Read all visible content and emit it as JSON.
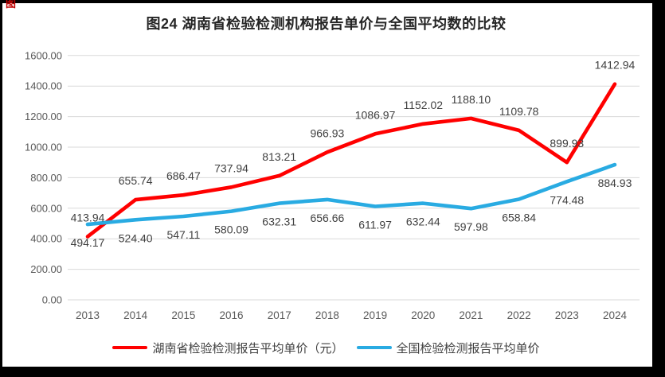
{
  "page": {
    "artifact_mark": "图"
  },
  "chart_data": {
    "type": "line",
    "title": "图24 湖南省检验检测机构报告单价与全国平均数的比较",
    "categories": [
      "2013",
      "2014",
      "2015",
      "2016",
      "2017",
      "2018",
      "2019",
      "2020",
      "2021",
      "2022",
      "2023",
      "2024"
    ],
    "series": [
      {
        "name": "湖南省检验检测报告平均单价（元）",
        "color": "#ff0000",
        "label_position": "above",
        "values": [
          413.94,
          655.74,
          686.47,
          737.94,
          813.21,
          966.93,
          1086.97,
          1152.02,
          1188.1,
          1109.78,
          899.93,
          1412.94
        ]
      },
      {
        "name": "全国检验检测报告平均单价",
        "color": "#29abe2",
        "label_position": "below",
        "values": [
          494.17,
          524.4,
          547.11,
          580.09,
          632.31,
          656.66,
          611.97,
          632.44,
          597.98,
          658.84,
          774.48,
          884.93
        ]
      }
    ],
    "y_axis": {
      "min": 0,
      "max": 1600,
      "step": 200,
      "tick_labels": [
        "0.00",
        "200.00",
        "400.00",
        "600.00",
        "800.00",
        "1000.00",
        "1200.00",
        "1400.00",
        "1600.00"
      ]
    },
    "grid": true,
    "legend_position": "bottom",
    "data_label_decimals": 2
  }
}
